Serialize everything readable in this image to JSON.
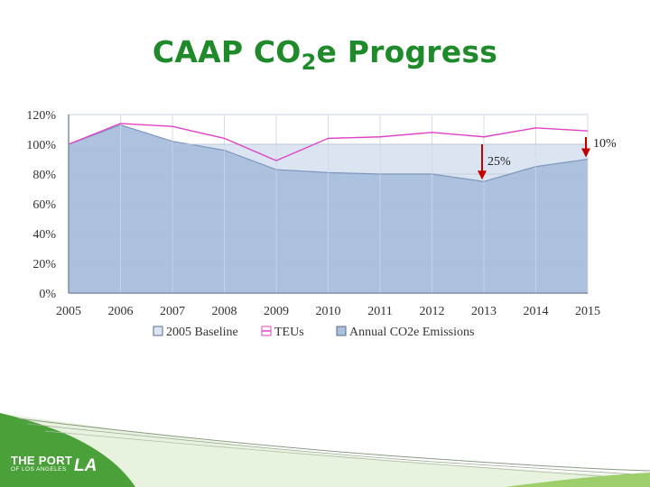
{
  "slide": {
    "title_main": "CAAP CO",
    "title_sub": "2",
    "title_end": "e Progress"
  },
  "chart_data": {
    "type": "area",
    "x": [
      2005,
      2006,
      2007,
      2008,
      2009,
      2010,
      2011,
      2012,
      2013,
      2014,
      2015
    ],
    "xlim": [
      2005,
      2015
    ],
    "ylim": [
      0,
      120
    ],
    "y_ticks": [
      "0%",
      "20%",
      "40%",
      "60%",
      "80%",
      "100%",
      "120%"
    ],
    "x_ticks": [
      "2005",
      "2006",
      "2007",
      "2008",
      "2009",
      "2010",
      "2011",
      "2012",
      "2013",
      "2014",
      "2015"
    ],
    "grid": true,
    "legend_position": "bottom",
    "series": [
      {
        "name": "2005 Baseline",
        "type": "area",
        "color": "#dbe5f1",
        "values": [
          100,
          100,
          100,
          100,
          100,
          100,
          100,
          100,
          100,
          100,
          100
        ]
      },
      {
        "name": "TEUs",
        "type": "line",
        "color": "#e040c8",
        "values": [
          100,
          114,
          112,
          104,
          89,
          104,
          105,
          108,
          105,
          111,
          109
        ]
      },
      {
        "name": "Annual CO2e Emissions",
        "type": "area",
        "color": "#a9bfdc",
        "values": [
          100,
          113,
          102,
          96,
          83,
          81,
          80,
          80,
          75,
          85,
          90
        ]
      }
    ],
    "annotations": [
      {
        "label": "25%",
        "x": 2013,
        "from": 100,
        "to": 75
      },
      {
        "label": "10%",
        "x": 2015,
        "from": 100,
        "to": 90
      }
    ]
  },
  "logo": {
    "main": "THE PORT",
    "sub": "OF LOS ANGELES",
    "mark": "LA"
  }
}
